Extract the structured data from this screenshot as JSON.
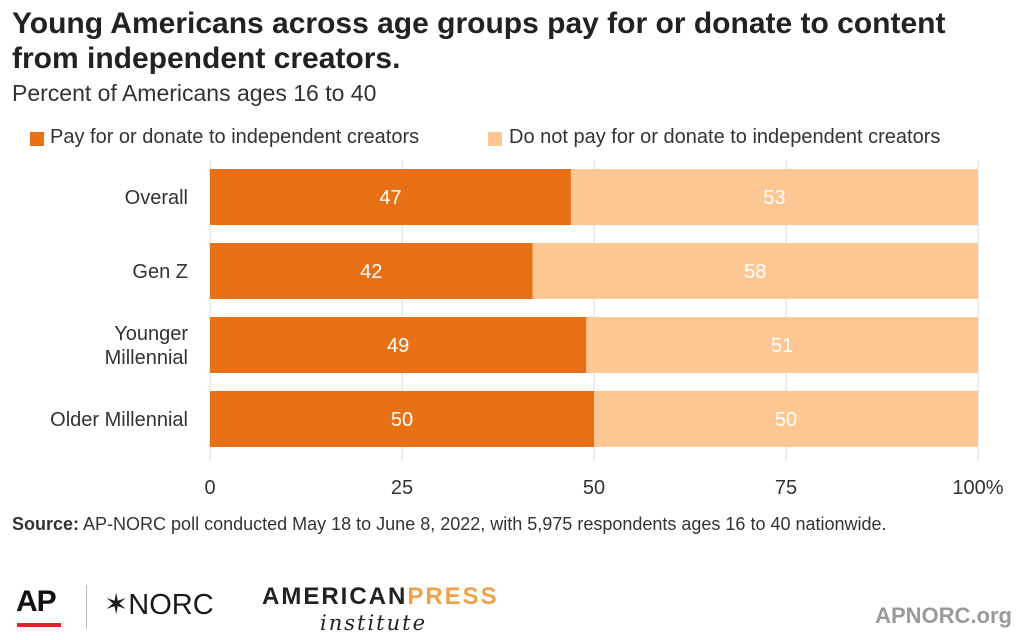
{
  "chart_data": {
    "type": "bar",
    "orientation": "horizontal",
    "stacked": true,
    "title": "Young Americans across age groups pay for or donate to content from independent creators.",
    "subtitle": "Percent of Americans ages 16 to 40",
    "categories": [
      [
        "Overall"
      ],
      [
        "Gen Z"
      ],
      [
        "Younger",
        "Millennial"
      ],
      [
        "Older Millennial"
      ]
    ],
    "series": [
      {
        "name": "Pay for or donate to independent creators",
        "color": "#e87116",
        "values": [
          47,
          42,
          49,
          50
        ]
      },
      {
        "name": "Do not pay for or donate to independent creators",
        "color": "#fdc794",
        "values": [
          53,
          58,
          51,
          50
        ]
      }
    ],
    "xlim": [
      0,
      100
    ],
    "xticks": [
      "0",
      "25",
      "50",
      "75",
      "100%"
    ],
    "xtick_values": [
      0,
      25,
      50,
      75,
      100
    ],
    "grid": true,
    "legend_position": "top"
  },
  "source": {
    "label": "Source:",
    "text": " AP-NORC poll conducted May 18 to June 8, 2022, with 5,975 respondents ages 16 to 40 nationwide."
  },
  "logos": {
    "ap": "AP",
    "norc": "✶NORC",
    "api_american": "AMERICAN",
    "api_press": "PRESS",
    "api_institute": "institute",
    "url": "APNORC.org"
  }
}
